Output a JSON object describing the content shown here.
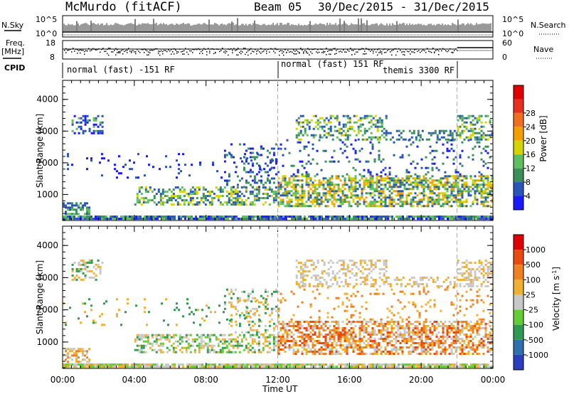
{
  "header": {
    "station": "McMurdo (fitACF)",
    "beam": "Beam 05",
    "date_range": "30/Dec/2015 - 31/Dec/2015"
  },
  "strip_labels": {
    "nsky": "N.Sky",
    "nsky_top": "10^5",
    "nsky_bot": "10^0",
    "nsearch": "N.Search",
    "nsearch_top": "10^5",
    "nsearch_bot": "10^0",
    "freq": "Freq.",
    "freq_unit": "[MHz]",
    "freq_top": "18",
    "freq_bot": "8",
    "nave": "Nave",
    "nave_top": "60",
    "nave_bot": "0",
    "cpid": "CPID"
  },
  "cpid_segments": [
    {
      "label": "normal (fast) -151 RF",
      "start_hour": 0,
      "end_hour": 12
    },
    {
      "label": "normal (fast) 151 RF",
      "start_hour": 12,
      "end_hour": 22
    },
    {
      "label": "themis 3300 RF",
      "start_hour": 12,
      "end_hour": 22
    }
  ],
  "chart_data": [
    {
      "type": "heatmap",
      "panel": "power",
      "ylabel": "Slant Range [km]",
      "xlabel": "Time UT",
      "x_ticks": [
        "00:00",
        "04:00",
        "08:00",
        "12:00",
        "16:00",
        "20:00",
        "00:00"
      ],
      "x_range_hours": [
        0,
        24
      ],
      "y_ticks": [
        1000,
        2000,
        3000,
        4000
      ],
      "ylim": [
        180,
        4600
      ],
      "colorbar_label": "Power [dB]",
      "colorbar_ticks": [
        "4",
        "8",
        "12",
        "16",
        "20",
        "24",
        "28"
      ],
      "colors": [
        "#1a1aff",
        "#2a55b8",
        "#3a8f5a",
        "#5fbf5f",
        "#d4d400",
        "#f2a000",
        "#f07020",
        "#e83020",
        "#e00000"
      ],
      "vertical_markers_hours": [
        12,
        22
      ]
    },
    {
      "type": "heatmap",
      "panel": "velocity",
      "ylabel": "Slant Range [km]",
      "xlabel": "Time UT",
      "x_ticks": [
        "00:00",
        "04:00",
        "08:00",
        "12:00",
        "16:00",
        "20:00",
        "00:00"
      ],
      "x_range_hours": [
        0,
        24
      ],
      "y_ticks": [
        1000,
        2000,
        3000,
        4000
      ],
      "ylim": [
        180,
        4600
      ],
      "colorbar_label": "Velocity [m s",
      "colorbar_unit_sup": "-1",
      "colorbar_unit_close": "]",
      "colorbar_ticks": [
        "1000",
        "500",
        "100",
        "25",
        "-25",
        "-100",
        "-500",
        "-1000"
      ],
      "colors": [
        "#2a3fbf",
        "#2e6fae",
        "#2f9a52",
        "#66cc33",
        "#c8c8c8",
        "#f0b030",
        "#f08020",
        "#e84a10",
        "#e00000"
      ],
      "vertical_markers_hours": [
        12,
        22
      ]
    }
  ]
}
